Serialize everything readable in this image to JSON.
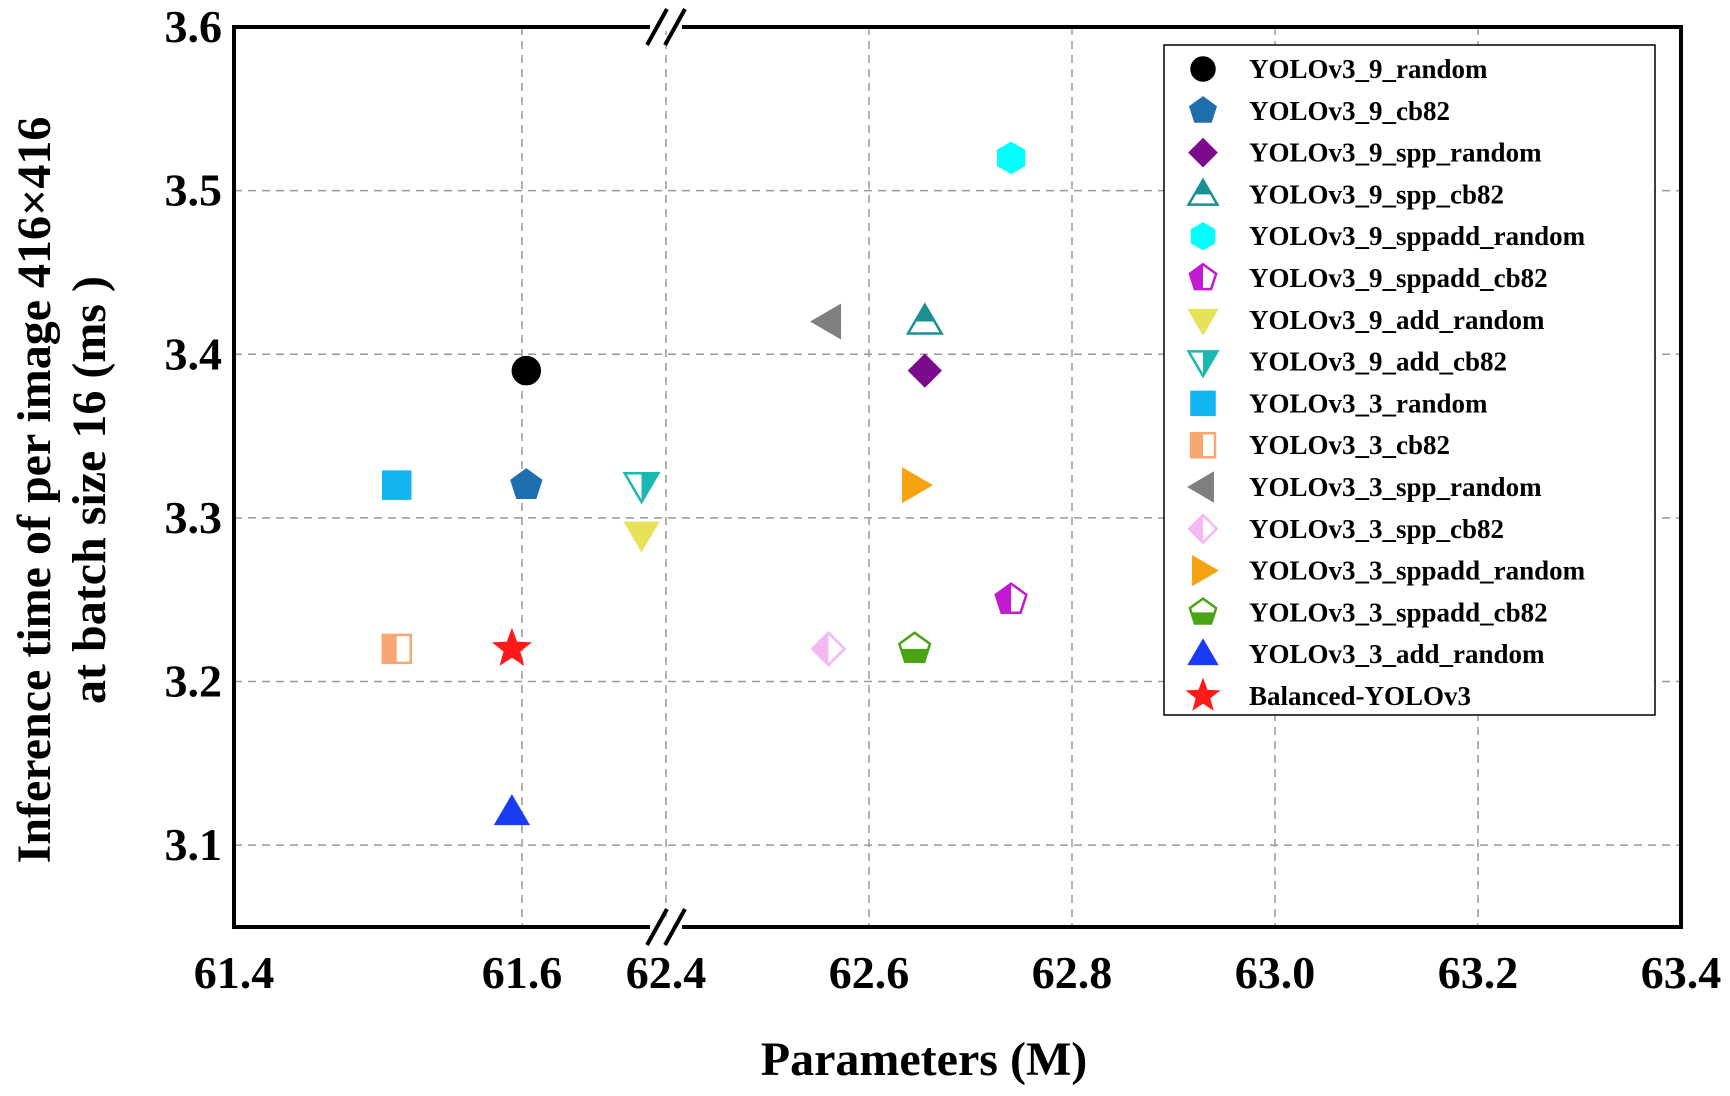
{
  "chart_data": {
    "type": "scatter",
    "xlabel": "Parameters (M)",
    "ylabel": [
      "Inference time of per image 416×416",
      "at batch size 16 (ms )"
    ],
    "x_axis_broken": true,
    "x_segments": [
      {
        "range": [
          61.4,
          61.7
        ],
        "ticks": [
          "61.4",
          "61.6"
        ]
      },
      {
        "range": [
          62.4,
          63.4
        ],
        "ticks": [
          "62.4",
          "62.6",
          "62.8",
          "63.0",
          "63.2",
          "63.4"
        ]
      }
    ],
    "ylim": [
      3.05,
      3.6
    ],
    "y_ticks": [
      "3.1",
      "3.2",
      "3.3",
      "3.4",
      "3.5",
      "3.6"
    ],
    "grid": true,
    "legend_position": "top-right",
    "series": [
      {
        "name": "YOLOv3_9_random",
        "x": 61.603,
        "y": 3.39,
        "marker": "circle",
        "fill": "#000000",
        "stroke": "#000000",
        "style": "filled"
      },
      {
        "name": "YOLOv3_9_cb82",
        "x": 61.603,
        "y": 3.32,
        "marker": "pentagon",
        "fill": "#1f6fae",
        "stroke": "#1f6fae",
        "style": "filled"
      },
      {
        "name": "YOLOv3_9_spp_random",
        "x": 62.655,
        "y": 3.39,
        "marker": "diamond",
        "fill": "#7b0a8c",
        "stroke": "#7b0a8c",
        "style": "filled"
      },
      {
        "name": "YOLOv3_9_spp_cb82",
        "x": 62.655,
        "y": 3.42,
        "marker": "triangle-up",
        "fill": "#1a9190",
        "stroke": "#1a9190",
        "style": "half-top"
      },
      {
        "name": "YOLOv3_9_sppadd_random",
        "x": 62.74,
        "y": 3.52,
        "marker": "hexagon",
        "fill": "#00ffff",
        "stroke": "#00ffff",
        "style": "filled"
      },
      {
        "name": "YOLOv3_9_sppadd_cb82",
        "x": 62.74,
        "y": 3.25,
        "marker": "pentagon",
        "fill": "#c21ad1",
        "stroke": "#c21ad1",
        "style": "half-left"
      },
      {
        "name": "YOLOv3_9_add_random",
        "x": 61.683,
        "y": 3.29,
        "marker": "triangle-down",
        "fill": "#e8e25a",
        "stroke": "#e8e25a",
        "style": "filled"
      },
      {
        "name": "YOLOv3_9_add_cb82",
        "x": 61.683,
        "y": 3.32,
        "marker": "triangle-down",
        "fill": "#1ab8b2",
        "stroke": "#1ab8b2",
        "style": "half-right"
      },
      {
        "name": "YOLOv3_3_random",
        "x": 61.513,
        "y": 3.32,
        "marker": "square",
        "fill": "#12b5ef",
        "stroke": "#12b5ef",
        "style": "filled"
      },
      {
        "name": "YOLOv3_3_cb82",
        "x": 61.513,
        "y": 3.22,
        "marker": "square",
        "fill": "#f7a872",
        "stroke": "#f7a872",
        "style": "half-left"
      },
      {
        "name": "YOLOv3_3_spp_random",
        "x": 62.56,
        "y": 3.42,
        "marker": "triangle-left",
        "fill": "#7f7f7f",
        "stroke": "#7f7f7f",
        "style": "filled"
      },
      {
        "name": "YOLOv3_3_spp_cb82",
        "x": 62.56,
        "y": 3.22,
        "marker": "diamond",
        "fill": "#f5b8f5",
        "stroke": "#f5b8f5",
        "style": "half-left"
      },
      {
        "name": "YOLOv3_3_sppadd_random",
        "x": 62.645,
        "y": 3.32,
        "marker": "triangle-right",
        "fill": "#f5a310",
        "stroke": "#f5a310",
        "style": "filled"
      },
      {
        "name": "YOLOv3_3_sppadd_cb82",
        "x": 62.645,
        "y": 3.22,
        "marker": "pentagon",
        "fill": "#4aa514",
        "stroke": "#4aa514",
        "style": "half-bottom"
      },
      {
        "name": "YOLOv3_3_add_random",
        "x": 61.593,
        "y": 3.12,
        "marker": "triangle-up",
        "fill": "#1a3cf0",
        "stroke": "#1a3cf0",
        "style": "filled"
      },
      {
        "name": "Balanced-YOLOv3",
        "x": 61.593,
        "y": 3.22,
        "marker": "star",
        "fill": "#ff1a1a",
        "stroke": "#ff1a1a",
        "style": "filled"
      }
    ]
  }
}
